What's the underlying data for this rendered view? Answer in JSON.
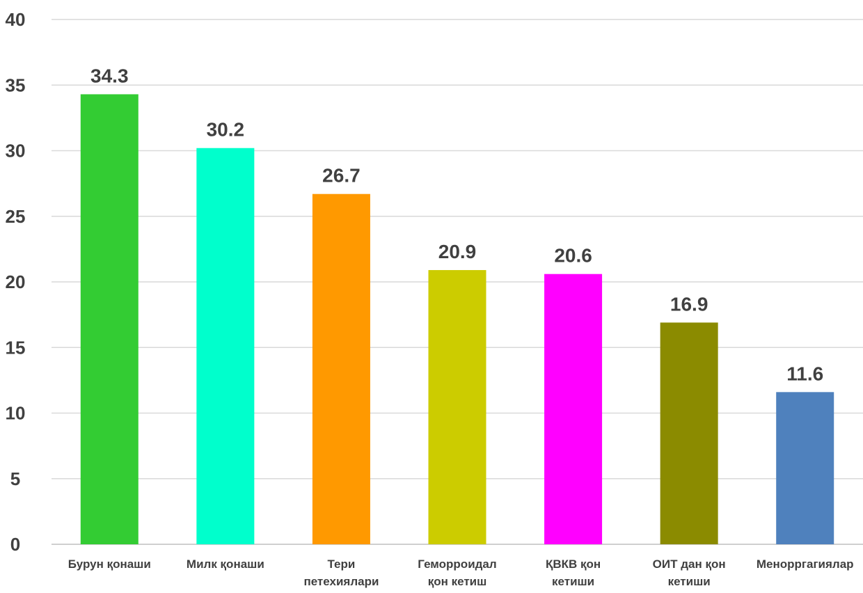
{
  "chart_data": {
    "type": "bar",
    "title": "",
    "xlabel": "",
    "ylabel": "",
    "ylim": [
      0,
      40
    ],
    "yticks": [
      0,
      5,
      10,
      15,
      20,
      25,
      30,
      35,
      40
    ],
    "grid": true,
    "legend": "none",
    "categories": [
      [
        "Бурун қонаши"
      ],
      [
        "Милк қонаши"
      ],
      [
        "Тери",
        "петехиялари"
      ],
      [
        "Геморроидал",
        "қон кетиш"
      ],
      [
        "ҚВКВ қон",
        "кетиши"
      ],
      [
        "ОИТ дан қон",
        "кетиши"
      ],
      [
        "Менорргагиялар"
      ]
    ],
    "values": [
      34.3,
      30.2,
      26.7,
      20.9,
      20.6,
      16.9,
      11.6
    ],
    "value_labels": [
      "34.3",
      "30.2",
      "26.7",
      "20.9",
      "20.6",
      "16.9",
      "11.6"
    ],
    "colors": [
      "#33cc33",
      "#00ffcc",
      "#ff9900",
      "#cccc00",
      "#ff00ff",
      "#8b8b00",
      "#4f81bd"
    ]
  }
}
